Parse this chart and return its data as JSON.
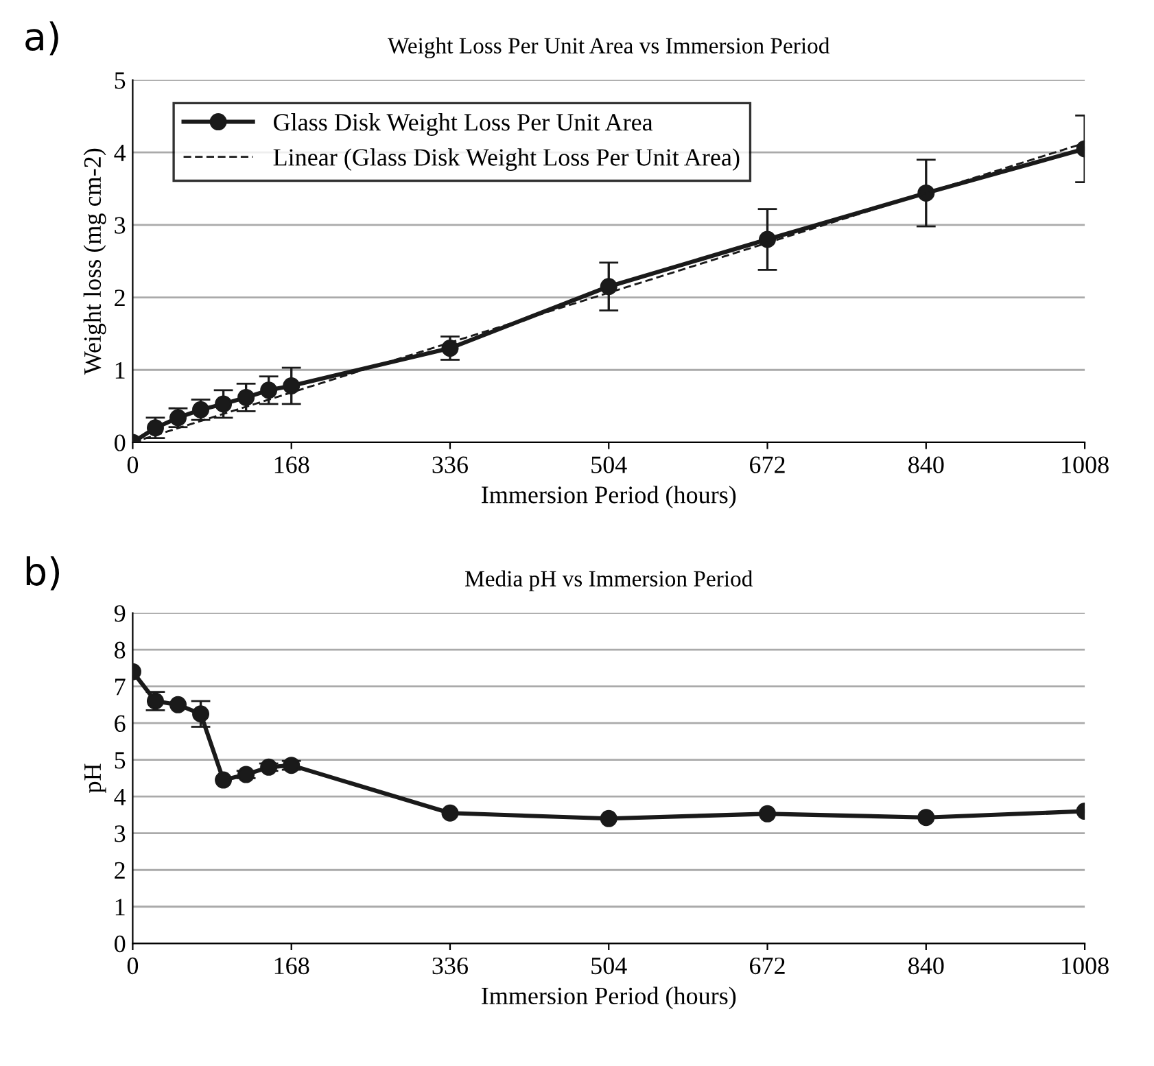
{
  "chart_data": [
    {
      "type": "line",
      "title": "Weight Loss Per Unit Area vs Immersion Period",
      "xlabel": "Immersion Period (hours)",
      "ylabel": "Weight loss (mg cm-2)",
      "annotations": [
        "a)"
      ],
      "xlim": [
        0,
        1008
      ],
      "xticks": [
        0,
        168,
        336,
        504,
        672,
        840,
        1008
      ],
      "ylim": [
        0,
        5
      ],
      "yticks": [
        0,
        1,
        2,
        3,
        4,
        5
      ],
      "grid": "y",
      "legend": "top left",
      "series": [
        {
          "name": "Glass Disk Weight Loss Per Unit Area",
          "color": "#1a1a1a",
          "marker": "circle",
          "line_style": "solid",
          "x": [
            0,
            24,
            48,
            72,
            96,
            120,
            144,
            168,
            336,
            504,
            672,
            840,
            1008
          ],
          "values": [
            0,
            0.2,
            0.34,
            0.45,
            0.53,
            0.62,
            0.72,
            0.78,
            1.3,
            2.15,
            2.8,
            3.44,
            4.05
          ],
          "errors": [
            null,
            0.14,
            0.13,
            0.14,
            0.19,
            0.19,
            0.19,
            0.25,
            0.16,
            0.33,
            0.42,
            0.46,
            0.46
          ]
        },
        {
          "name": "Linear (Glass Disk Weight Loss Per Unit Area)",
          "color": "#1a1a1a",
          "marker": "none",
          "line_style": "dashed",
          "x": [
            0,
            1008
          ],
          "values": [
            0.0,
            4.13
          ]
        }
      ]
    },
    {
      "type": "line",
      "title": "Media pH vs Immersion Period",
      "xlabel": "Immersion Period (hours)",
      "ylabel": "pH",
      "annotations": [
        "b)"
      ],
      "xlim": [
        0,
        1008
      ],
      "xticks": [
        0,
        168,
        336,
        504,
        672,
        840,
        1008
      ],
      "ylim": [
        0,
        9
      ],
      "yticks": [
        0,
        1,
        2,
        3,
        4,
        5,
        6,
        7,
        8,
        9
      ],
      "grid": "y",
      "series": [
        {
          "color": "#1a1a1a",
          "marker": "circle",
          "line_style": "solid",
          "x": [
            0,
            24,
            48,
            72,
            96,
            120,
            144,
            168,
            336,
            504,
            672,
            840,
            1008
          ],
          "values": [
            7.4,
            6.6,
            6.5,
            6.25,
            4.45,
            4.6,
            4.8,
            4.85,
            3.55,
            3.4,
            3.53,
            3.43,
            3.6
          ],
          "errors": [
            null,
            0.25,
            null,
            0.35,
            null,
            0.1,
            0.1,
            0.12,
            null,
            null,
            null,
            null,
            null
          ]
        }
      ]
    }
  ]
}
